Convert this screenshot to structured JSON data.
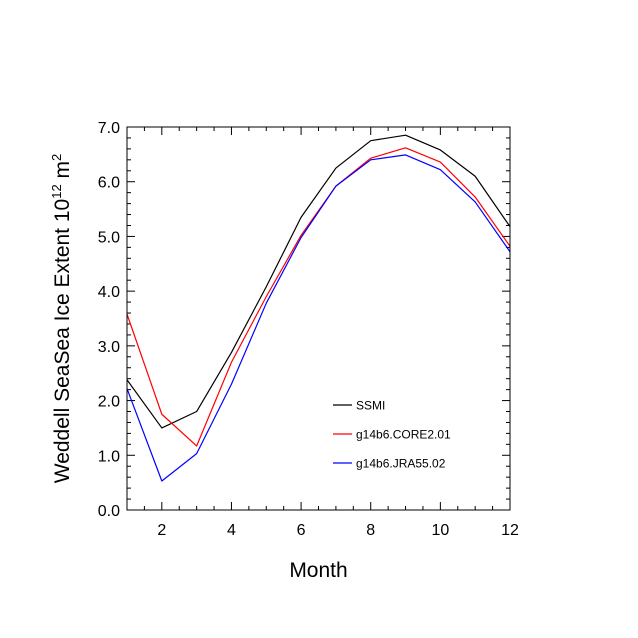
{
  "chart_data": {
    "type": "line",
    "xlabel": "Month",
    "ylabel_main": "Weddell SeaSea Ice Extent 10",
    "ylabel_exp": "12",
    "ylabel_unit": " m",
    "ylabel_unit_exp": "2",
    "xlim": [
      1,
      12
    ],
    "ylim": [
      0,
      7
    ],
    "x_ticks": [
      2,
      4,
      6,
      8,
      10,
      12
    ],
    "x_tick_labels": [
      "2",
      "4",
      "6",
      "8",
      "10",
      "12"
    ],
    "y_ticks": [
      0,
      1,
      2,
      3,
      4,
      5,
      6,
      7
    ],
    "y_tick_labels": [
      "0.0",
      "1.0",
      "2.0",
      "3.0",
      "4.0",
      "5.0",
      "6.0",
      "7.0"
    ],
    "x": [
      1,
      2,
      3,
      4,
      5,
      6,
      7,
      8,
      9,
      10,
      11,
      12
    ],
    "legend_position": "lower-right",
    "series": [
      {
        "name": "SSMI",
        "color": "#000000",
        "values": [
          2.38,
          1.5,
          1.8,
          2.88,
          4.08,
          5.35,
          6.25,
          6.75,
          6.85,
          6.58,
          6.1,
          5.18
        ]
      },
      {
        "name": "g14b6.CORE2.01",
        "color": "#ff0000",
        "values": [
          3.58,
          1.75,
          1.17,
          2.7,
          3.9,
          5.02,
          5.92,
          6.43,
          6.62,
          6.36,
          5.72,
          4.82
        ]
      },
      {
        "name": "g14b6.JRA55.02",
        "color": "#0000ff",
        "values": [
          2.22,
          0.53,
          1.03,
          2.3,
          3.78,
          4.98,
          5.92,
          6.4,
          6.49,
          6.22,
          5.63,
          4.72
        ]
      }
    ]
  }
}
